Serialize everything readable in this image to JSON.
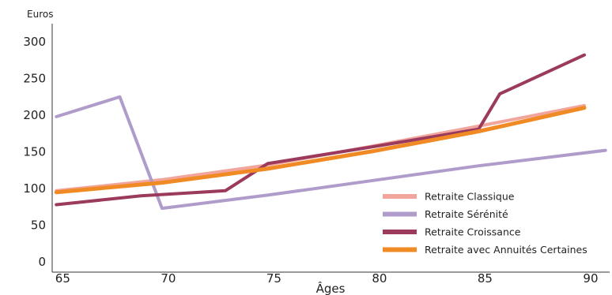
{
  "chart_data": {
    "type": "line",
    "title": "",
    "ylabel": "Euros",
    "xlabel": "Âges",
    "xlim": [
      64.8,
      91.2
    ],
    "ylim": [
      0,
      300
    ],
    "x_ticks": [
      65,
      70,
      75,
      80,
      85,
      90
    ],
    "y_ticks": [
      0,
      50,
      100,
      150,
      200,
      250,
      300
    ],
    "grid": false,
    "legend_position": "bottom-right",
    "series": [
      {
        "name": "Retraite Classique",
        "color": "#f2a59c",
        "width": 4,
        "points": [
          [
            65,
            97
          ],
          [
            70,
            112
          ],
          [
            75,
            132
          ],
          [
            80,
            158
          ],
          [
            85,
            185
          ],
          [
            90,
            213
          ]
        ]
      },
      {
        "name": "Retraite Sérénité",
        "color": "#b09ccb",
        "width": 4,
        "points": [
          [
            65,
            198
          ],
          [
            68,
            225
          ],
          [
            70,
            73
          ],
          [
            75,
            91
          ],
          [
            80,
            111
          ],
          [
            85,
            131
          ],
          [
            91,
            152
          ]
        ]
      },
      {
        "name": "Retraite Croissance",
        "color": "#9b3a5c",
        "width": 4,
        "points": [
          [
            65,
            78
          ],
          [
            69,
            90
          ],
          [
            73,
            97
          ],
          [
            75,
            134
          ],
          [
            80,
            157
          ],
          [
            85,
            181
          ],
          [
            86,
            229
          ],
          [
            90,
            282
          ]
        ]
      },
      {
        "name": "Retraite avec Annuités Certaines",
        "color": "#f08a24",
        "width": 5,
        "points": [
          [
            65,
            95
          ],
          [
            70,
            108
          ],
          [
            75,
            127
          ],
          [
            80,
            151
          ],
          [
            85,
            178
          ],
          [
            90,
            210
          ]
        ]
      }
    ]
  }
}
